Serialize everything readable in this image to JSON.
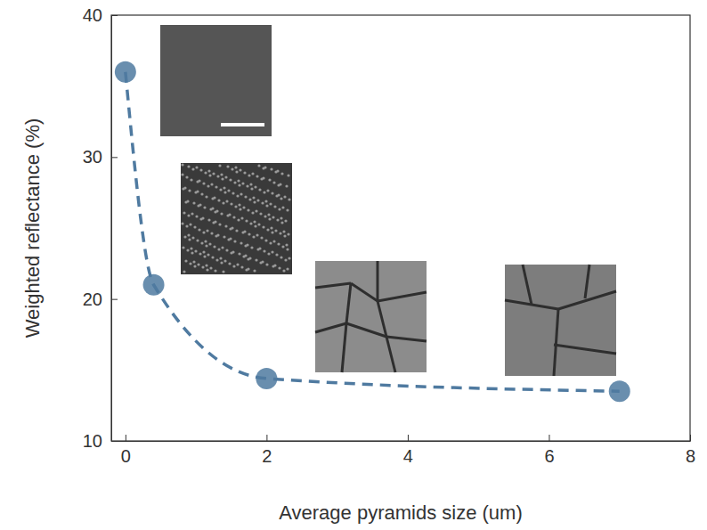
{
  "chart_data": {
    "type": "line",
    "x_label": "Average pyramids size (um)",
    "y_label": "Weighted reflectance (%)",
    "x": [
      0,
      0.4,
      2,
      7
    ],
    "values": [
      36,
      21,
      14.4,
      13.5
    ],
    "color": "#4f7aa0",
    "marker": "circle",
    "line_style": "dashed",
    "xlim": [
      -0.2,
      8
    ],
    "xticks": [
      0,
      2,
      4,
      6,
      8
    ],
    "ylim": [
      10,
      40
    ],
    "yticks": [
      10,
      20,
      30,
      40
    ]
  }
}
